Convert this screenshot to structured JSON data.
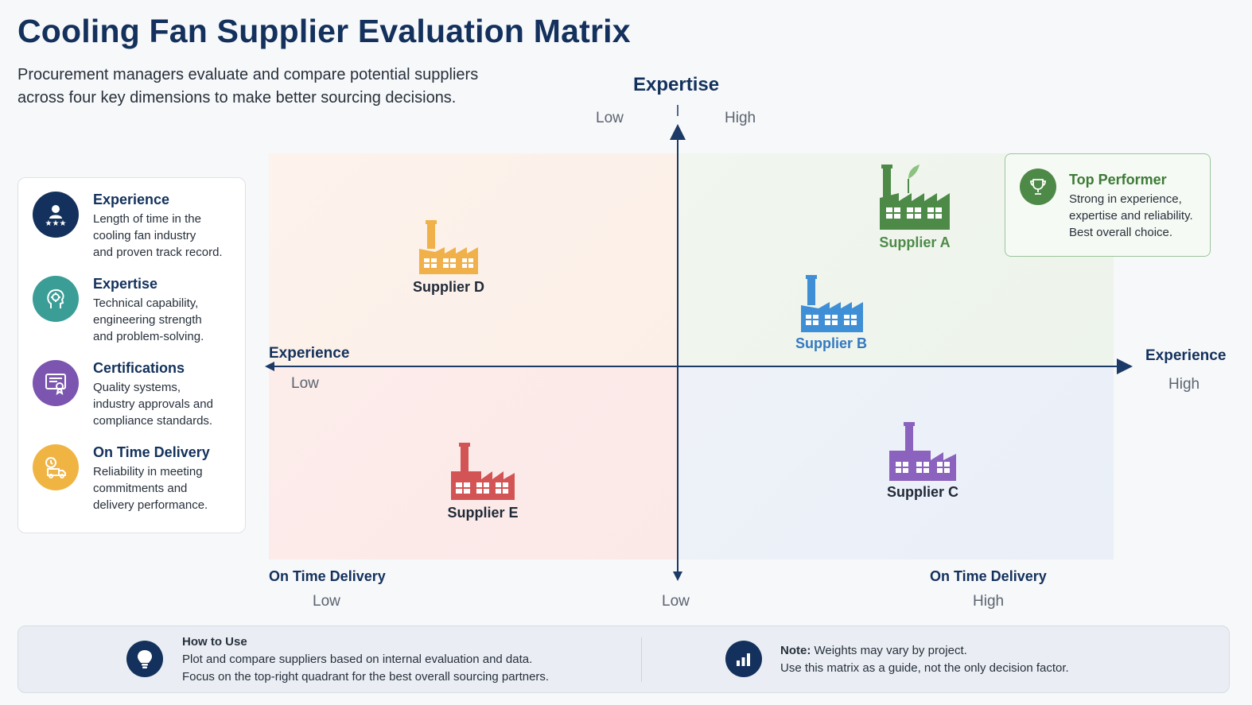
{
  "title": "Cooling Fan Supplier Evaluation Matrix",
  "subtitle": {
    "line1": "Procurement managers evaluate and compare potential suppliers",
    "line2": "across four key dimensions to make better sourcing decisions."
  },
  "legend": [
    {
      "title": "Experience",
      "lines": [
        "Length of time in the",
        "cooling fan industry",
        "and proven track record."
      ],
      "color": "#13315c",
      "icon": "team-rating-icon"
    },
    {
      "title": "Expertise",
      "lines": [
        "Technical capability,",
        "engineering strength",
        "and problem-solving."
      ],
      "color": "#3a9e97",
      "icon": "brain-gear-icon"
    },
    {
      "title": "Certifications",
      "lines": [
        "Quality systems,",
        "industry approvals and",
        "compliance standards."
      ],
      "color": "#7b55b0",
      "icon": "certificate-icon"
    },
    {
      "title": "On Time Delivery",
      "lines": [
        "Reliability in meeting",
        "commitments and",
        "delivery performance."
      ],
      "color": "#f0b443",
      "icon": "delivery-truck-icon"
    }
  ],
  "axes": {
    "vertical_title": "Expertise",
    "vertical_low": "Low",
    "vertical_high": "High",
    "horizontal_left_title": "Experience",
    "horizontal_left_low": "Low",
    "horizontal_right_title": "Experience",
    "horizontal_right_high": "High",
    "bottom_left_title": "On Time Delivery",
    "bottom_left_low": "Low",
    "bottom_center_low": "Low",
    "bottom_right_title": "On Time Delivery",
    "bottom_right_high": "High"
  },
  "suppliers": [
    {
      "name": "Supplier A",
      "color": "#4d8a47",
      "label_color": "#4d8a47",
      "icon": "factory-leaf-icon"
    },
    {
      "name": "Supplier B",
      "color": "#3f8fd6",
      "label_color": "#3479c0",
      "icon": "factory-icon"
    },
    {
      "name": "Supplier C",
      "color": "#8b62bd",
      "label_color": "#1f2937",
      "icon": "factory-icon"
    },
    {
      "name": "Supplier D",
      "color": "#f0b04a",
      "label_color": "#1f2937",
      "icon": "factory-icon"
    },
    {
      "name": "Supplier E",
      "color": "#d35454",
      "label_color": "#1f2937",
      "icon": "factory-icon"
    }
  ],
  "top_performer": {
    "title": "Top Performer",
    "lines": [
      "Strong in experience,",
      "expertise and reliability.",
      "Best overall choice."
    ],
    "icon": "trophy-icon"
  },
  "footer": {
    "how_title": "How to Use",
    "how_line1": "Plot and compare suppliers based on internal evaluation and data.",
    "how_line2": "Focus on the top-right quadrant for the best overall sourcing partners.",
    "note_label": "Note:",
    "note_line1": " Weights may vary by project.",
    "note_line2": "Use this matrix as a guide, not the only decision factor."
  },
  "colors": {
    "navy": "#13315c",
    "axis": "#1c3a66"
  }
}
